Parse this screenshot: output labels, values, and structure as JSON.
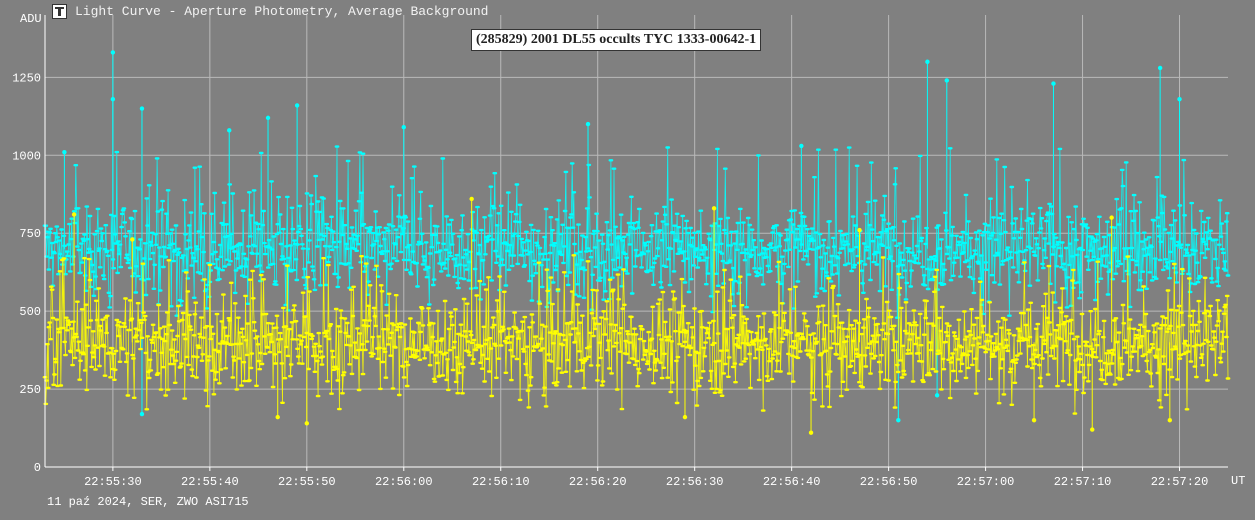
{
  "window": {
    "title": "Light Curve - Aperture Photometry, Average Background",
    "icon": "light-curve-app-icon"
  },
  "footer": {
    "note": "11 paź 2024, SER, ZWO ASI715"
  },
  "chart_data": {
    "type": "scatter",
    "title": "(285829) 2001 DL55 occults TYC 1333-00642-1",
    "ylabel": "ADU",
    "xlabel": "UT",
    "xlim": [
      "22:55:23",
      "22:57:25"
    ],
    "ylim": [
      0,
      1450
    ],
    "grid": true,
    "x_ticks": [
      "22:55:30",
      "22:55:40",
      "22:55:50",
      "22:56:00",
      "22:56:10",
      "22:56:20",
      "22:56:30",
      "22:56:40",
      "22:56:50",
      "22:57:00",
      "22:57:10",
      "22:57:20"
    ],
    "y_ticks": [
      0,
      250,
      500,
      750,
      1000,
      1250
    ],
    "series": [
      {
        "color": "#00ffff",
        "marker": "point-with-stem",
        "typical_range": [
          560,
          850
        ],
        "mean": 700,
        "peaks": [
          {
            "x": "22:55:25",
            "y": 1010
          },
          {
            "x": "22:55:30",
            "y": 1330
          },
          {
            "x": "22:55:30",
            "y": 1180
          },
          {
            "x": "22:55:33",
            "y": 1150
          },
          {
            "x": "22:55:42",
            "y": 1080
          },
          {
            "x": "22:55:46",
            "y": 1120
          },
          {
            "x": "22:55:49",
            "y": 1160
          },
          {
            "x": "22:56:00",
            "y": 1090
          },
          {
            "x": "22:56:19",
            "y": 1100
          },
          {
            "x": "22:56:41",
            "y": 1030
          },
          {
            "x": "22:56:54",
            "y": 1300
          },
          {
            "x": "22:56:56",
            "y": 1240
          },
          {
            "x": "22:57:07",
            "y": 1230
          },
          {
            "x": "22:57:18",
            "y": 1280
          },
          {
            "x": "22:57:20",
            "y": 1180
          }
        ],
        "dips": [
          {
            "x": "22:55:33",
            "y": 170
          },
          {
            "x": "22:56:51",
            "y": 150
          },
          {
            "x": "22:56:55",
            "y": 230
          }
        ]
      },
      {
        "color": "#ffff00",
        "marker": "point-with-stem",
        "typical_range": [
          260,
          560
        ],
        "mean": 400,
        "peaks": [
          {
            "x": "22:55:26",
            "y": 810
          },
          {
            "x": "22:55:32",
            "y": 730
          },
          {
            "x": "22:56:07",
            "y": 860
          },
          {
            "x": "22:56:32",
            "y": 830
          },
          {
            "x": "22:56:47",
            "y": 760
          },
          {
            "x": "22:57:13",
            "y": 800
          }
        ],
        "dips": [
          {
            "x": "22:55:47",
            "y": 160
          },
          {
            "x": "22:55:50",
            "y": 140
          },
          {
            "x": "22:56:29",
            "y": 160
          },
          {
            "x": "22:56:42",
            "y": 110
          },
          {
            "x": "22:57:05",
            "y": 150
          },
          {
            "x": "22:57:11",
            "y": 120
          },
          {
            "x": "22:57:19",
            "y": 150
          }
        ]
      }
    ]
  }
}
